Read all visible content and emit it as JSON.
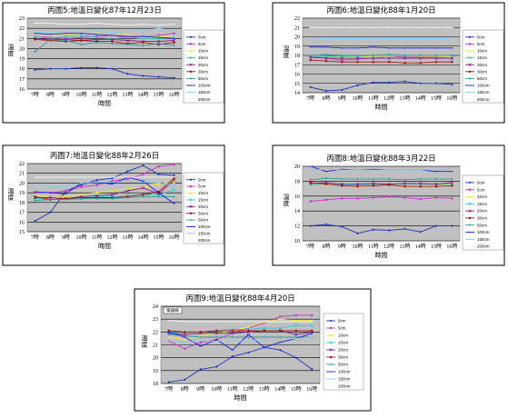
{
  "series_names": [
    "0cm",
    "5cm",
    "10cm",
    "15cm",
    "20cm",
    "30cm",
    "50cm",
    "100cm",
    "150cm",
    "200cm"
  ],
  "series_colors": [
    "#1d36b8",
    "#cc33cc",
    "#eeee33",
    "#33cccc",
    "#882288",
    "#aa1111",
    "#339999",
    "#1a1aee",
    "#88ccee",
    "#f4f4f4"
  ],
  "chart_data": [
    {
      "type": "line",
      "title": "丙圖5:地溫日變化87年12月23日",
      "xlabel": "時間",
      "ylabel": "溫度",
      "categories": [
        "7時",
        "8時",
        "9時",
        "10時",
        "11時",
        "12時",
        "13時",
        "14時",
        "15時",
        "16時"
      ],
      "ylim": [
        16,
        23
      ],
      "yticks": [
        16,
        17,
        18,
        19,
        20,
        21,
        22,
        23
      ],
      "series": [
        {
          "name": "0cm",
          "values": [
            17.9,
            18.0,
            18.0,
            18.1,
            18.1,
            18.0,
            17.5,
            17.3,
            17.2,
            17.1
          ]
        },
        {
          "name": "5cm",
          "values": [
            21.2,
            21.1,
            21.0,
            21.1,
            21.2,
            21.3,
            21.1,
            21.2,
            21.3,
            21.5
          ]
        },
        {
          "name": "10cm",
          "values": [
            21.3,
            21.3,
            21.4,
            21.4,
            21.5,
            21.3,
            21.3,
            21.2,
            21.2,
            21.2
          ]
        },
        {
          "name": "15cm",
          "values": [
            21.2,
            21.0,
            21.2,
            21.3,
            21.1,
            21.0,
            21.1,
            21.0,
            21.0,
            21.1
          ]
        },
        {
          "name": "20cm",
          "values": [
            21.0,
            20.9,
            20.9,
            20.8,
            20.9,
            20.9,
            20.8,
            20.7,
            20.7,
            20.8
          ]
        },
        {
          "name": "30cm",
          "values": [
            20.9,
            20.8,
            20.7,
            20.8,
            20.7,
            20.7,
            20.5,
            20.6,
            20.4,
            20.6
          ]
        },
        {
          "name": "50cm",
          "values": [
            19.7,
            20.9,
            20.8,
            20.4,
            20.6,
            20.5,
            20.4,
            20.3,
            20.5,
            20.3
          ]
        },
        {
          "name": "100cm",
          "values": [
            21.5,
            21.4,
            21.5,
            21.5,
            21.4,
            21.3,
            21.2,
            21.2,
            21.1,
            21.0
          ]
        },
        {
          "name": "150cm",
          "values": [
            21.6,
            21.6,
            21.7,
            21.9,
            21.8,
            21.6,
            21.7,
            21.8,
            22.0,
            21.8
          ]
        },
        {
          "name": "200cm",
          "values": [
            22.5,
            22.5,
            22.4,
            22.4,
            22.5,
            22.4,
            22.3,
            22.4,
            22.3,
            22.4
          ]
        }
      ]
    },
    {
      "type": "line",
      "title": "丙圖6:地溫日變化88年1月20日",
      "xlabel": "時間",
      "ylabel": "溫度",
      "categories": [
        "7時",
        "8時",
        "9時",
        "10時",
        "11時",
        "12時",
        "13時",
        "14時",
        "15時",
        "16時"
      ],
      "ylim": [
        14,
        22
      ],
      "yticks": [
        14,
        15,
        16,
        17,
        18,
        19,
        20,
        21,
        22
      ],
      "series": [
        {
          "name": "0cm",
          "values": [
            14.6,
            14.2,
            14.3,
            14.8,
            15.1,
            15.1,
            15.2,
            15.0,
            15.0,
            14.9
          ]
        },
        {
          "name": "5cm",
          "values": [
            17.9,
            17.7,
            17.5,
            17.6,
            17.7,
            17.9,
            17.8,
            17.8,
            17.8,
            17.7
          ]
        },
        {
          "name": "10cm",
          "values": [
            18.0,
            17.9,
            17.8,
            17.8,
            17.9,
            17.9,
            18.0,
            17.9,
            17.9,
            17.9
          ]
        },
        {
          "name": "15cm",
          "values": [
            17.9,
            17.9,
            17.9,
            17.9,
            18.0,
            18.0,
            18.0,
            18.0,
            18.0,
            18.0
          ]
        },
        {
          "name": "20cm",
          "values": [
            17.8,
            17.7,
            17.7,
            17.7,
            17.7,
            17.7,
            17.7,
            17.7,
            17.7,
            17.7
          ]
        },
        {
          "name": "30cm",
          "values": [
            17.5,
            17.4,
            17.3,
            17.3,
            17.3,
            17.3,
            17.2,
            17.2,
            17.3,
            17.3
          ]
        },
        {
          "name": "50cm",
          "values": [
            18.0,
            18.1,
            18.0,
            18.0,
            18.0,
            18.1,
            18.0,
            18.0,
            18.0,
            18.0
          ]
        },
        {
          "name": "100cm",
          "values": [
            18.9,
            18.9,
            18.8,
            18.8,
            18.9,
            18.8,
            18.8,
            18.8,
            18.8,
            18.8
          ]
        },
        {
          "name": "150cm",
          "values": [
            19.9,
            19.8,
            19.8,
            19.8,
            19.8,
            19.8,
            19.8,
            19.8,
            19.8,
            19.8
          ]
        },
        {
          "name": "200cm",
          "values": [
            21.0,
            21.0,
            21.0,
            21.0,
            21.0,
            21.0,
            21.0,
            21.0,
            21.0,
            21.0
          ]
        }
      ]
    },
    {
      "type": "line",
      "title": "丙圖7:地溫日變化88年2月26日",
      "xlabel": "時間",
      "ylabel": "溫度",
      "categories": [
        "7時",
        "8時",
        "9時",
        "10時",
        "11時",
        "12時",
        "13時",
        "14時",
        "15時",
        "16時"
      ],
      "ylim": [
        15,
        22
      ],
      "yticks": [
        15,
        16,
        17,
        18,
        19,
        20,
        21,
        22
      ],
      "series": [
        {
          "name": "0cm",
          "values": [
            16.1,
            17.0,
            19.2,
            19.8,
            20.3,
            20.5,
            21.2,
            21.8,
            20.9,
            20.8
          ]
        },
        {
          "name": "5cm",
          "values": [
            19.0,
            19.0,
            19.2,
            19.6,
            19.8,
            20.2,
            20.4,
            20.9,
            21.7,
            21.9
          ]
        },
        {
          "name": "10cm",
          "values": [
            18.8,
            18.5,
            18.6,
            18.8,
            19.0,
            19.2,
            19.4,
            19.6,
            19.9,
            20.1
          ]
        },
        {
          "name": "15cm",
          "values": [
            18.4,
            18.3,
            18.4,
            18.4,
            18.6,
            18.6,
            18.7,
            18.8,
            18.8,
            19.3
          ]
        },
        {
          "name": "20cm",
          "values": [
            18.5,
            18.5,
            18.4,
            18.6,
            18.7,
            18.8,
            19.2,
            19.5,
            18.9,
            20.3
          ]
        },
        {
          "name": "30cm",
          "values": [
            18.6,
            18.3,
            18.4,
            18.5,
            18.5,
            18.5,
            18.6,
            18.8,
            19.1,
            20.5
          ]
        },
        {
          "name": "50cm",
          "values": [
            18.2,
            18.3,
            18.3,
            18.4,
            18.4,
            18.4,
            18.5,
            18.6,
            18.6,
            18.6
          ]
        },
        {
          "name": "100cm",
          "values": [
            19.1,
            19.0,
            18.9,
            20.0,
            20.1,
            19.9,
            20.6,
            20.2,
            19.0,
            17.9
          ]
        },
        {
          "name": "150cm",
          "values": [
            19.9,
            19.6,
            19.6,
            20.0,
            20.1,
            20.1,
            20.2,
            20.1,
            20.0,
            19.8
          ]
        },
        {
          "name": "200cm",
          "values": [
            20.6,
            20.6,
            20.6,
            20.6,
            20.6,
            20.6,
            20.6,
            20.6,
            20.6,
            20.6
          ]
        }
      ]
    },
    {
      "type": "line",
      "title": "丙圖8:地溫日變化88年3月22日",
      "xlabel": "時間",
      "ylabel": "溫度",
      "categories": [
        "7時",
        "8時",
        "9時",
        "10時",
        "11時",
        "12時",
        "13時",
        "14時",
        "15時",
        "16時"
      ],
      "ylim": [
        10,
        20
      ],
      "yticks": [
        10,
        12,
        14,
        16,
        18,
        20
      ],
      "series": [
        {
          "name": "0cm",
          "values": [
            12.0,
            12.2,
            11.9,
            11.0,
            11.5,
            11.4,
            11.6,
            11.2,
            12.0,
            12.0
          ]
        },
        {
          "name": "5cm",
          "values": [
            15.3,
            15.5,
            15.7,
            15.7,
            15.8,
            15.9,
            15.8,
            15.6,
            15.8,
            15.7
          ]
        },
        {
          "name": "10cm",
          "values": [
            17.6,
            17.5,
            17.4,
            17.4,
            17.4,
            17.5,
            17.4,
            17.4,
            17.4,
            17.5
          ]
        },
        {
          "name": "15cm",
          "values": [
            17.5,
            17.6,
            17.5,
            17.5,
            17.6,
            17.6,
            17.6,
            17.6,
            17.6,
            17.6
          ]
        },
        {
          "name": "20cm",
          "values": [
            17.7,
            17.8,
            17.6,
            17.6,
            17.7,
            17.6,
            17.7,
            17.7,
            17.6,
            17.8
          ]
        },
        {
          "name": "30cm",
          "values": [
            17.8,
            17.6,
            17.4,
            17.3,
            17.4,
            17.5,
            17.3,
            17.3,
            17.3,
            17.4
          ]
        },
        {
          "name": "50cm",
          "values": [
            18.2,
            18.4,
            18.3,
            18.3,
            18.3,
            18.3,
            18.2,
            18.3,
            18.3,
            18.3
          ]
        },
        {
          "name": "100cm",
          "values": [
            20.0,
            19.3,
            19.6,
            19.5,
            19.6,
            19.5,
            19.5,
            19.5,
            19.3,
            19.3
          ]
        },
        {
          "name": "150cm",
          "values": [
            19.5,
            19.6,
            19.5,
            19.5,
            19.5,
            19.5,
            19.5,
            19.5,
            19.5,
            19.6
          ]
        },
        {
          "name": "200cm",
          "values": [
            20.1,
            20.1,
            20.1,
            20.1,
            20.1,
            20.1,
            20.1,
            20.1,
            20.1,
            20.1
          ]
        }
      ]
    },
    {
      "type": "line",
      "title": "丙圖9:地溫日變化88年4月20日",
      "xlabel": "時間",
      "ylabel": "溫度",
      "annotation": "暖器線",
      "categories": [
        "7時",
        "8時",
        "9時",
        "10時",
        "11時",
        "12時",
        "13時",
        "14時",
        "15時",
        "16時"
      ],
      "ylim": [
        18,
        24
      ],
      "yticks": [
        18,
        19,
        20,
        21,
        22,
        23,
        24
      ],
      "series": [
        {
          "name": "0cm",
          "values": [
            18.1,
            18.3,
            19.1,
            19.3,
            20.1,
            20.4,
            20.8,
            20.6,
            20.0,
            19.1
          ]
        },
        {
          "name": "5cm",
          "values": [
            21.3,
            20.7,
            21.2,
            21.4,
            21.9,
            22.3,
            22.7,
            23.2,
            23.3,
            23.3
          ]
        },
        {
          "name": "10cm",
          "values": [
            21.6,
            21.4,
            21.7,
            21.9,
            22.1,
            22.4,
            22.8,
            23.0,
            22.9,
            22.9
          ]
        },
        {
          "name": "15cm",
          "values": [
            22.0,
            21.9,
            22.0,
            22.1,
            22.2,
            22.2,
            22.3,
            22.3,
            22.5,
            22.5
          ]
        },
        {
          "name": "20cm",
          "values": [
            21.9,
            21.8,
            21.9,
            21.9,
            21.9,
            22.0,
            22.1,
            22.1,
            21.8,
            22.0
          ]
        },
        {
          "name": "30cm",
          "values": [
            22.1,
            22.0,
            22.0,
            22.1,
            22.1,
            22.1,
            22.1,
            22.1,
            22.1,
            22.1
          ]
        },
        {
          "name": "50cm",
          "values": [
            21.8,
            21.7,
            21.6,
            21.6,
            21.6,
            21.6,
            21.6,
            21.6,
            21.6,
            21.6
          ]
        },
        {
          "name": "100cm",
          "values": [
            22.0,
            21.6,
            20.9,
            21.4,
            20.6,
            21.8,
            20.8,
            21.2,
            21.5,
            21.9
          ]
        },
        {
          "name": "150cm",
          "values": [
            21.3,
            21.2,
            21.3,
            21.3,
            21.3,
            21.3,
            21.4,
            21.4,
            21.5,
            21.6
          ]
        },
        {
          "name": "200cm",
          "values": [
            22.9,
            22.8,
            22.8,
            22.8,
            22.8,
            22.8,
            22.8,
            22.8,
            22.8,
            22.8
          ]
        }
      ]
    }
  ]
}
